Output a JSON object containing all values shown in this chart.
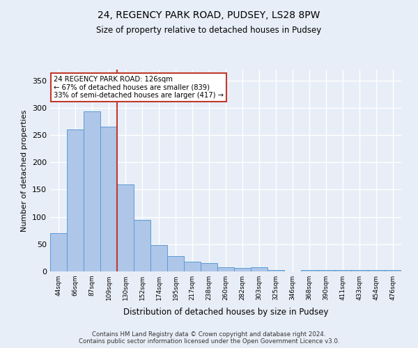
{
  "title_line1": "24, REGENCY PARK ROAD, PUDSEY, LS28 8PW",
  "title_line2": "Size of property relative to detached houses in Pudsey",
  "xlabel": "Distribution of detached houses by size in Pudsey",
  "ylabel": "Number of detached properties",
  "categories": [
    "44sqm",
    "66sqm",
    "87sqm",
    "109sqm",
    "130sqm",
    "152sqm",
    "174sqm",
    "195sqm",
    "217sqm",
    "238sqm",
    "260sqm",
    "282sqm",
    "303sqm",
    "325sqm",
    "346sqm",
    "368sqm",
    "390sqm",
    "411sqm",
    "433sqm",
    "454sqm",
    "476sqm"
  ],
  "values": [
    70,
    260,
    293,
    265,
    160,
    95,
    48,
    28,
    18,
    15,
    8,
    6,
    8,
    3,
    0,
    3,
    3,
    3,
    3,
    3,
    3
  ],
  "bar_color": "#aec6e8",
  "bar_edge_color": "#5b9bd5",
  "annotation_line1": "24 REGENCY PARK ROAD: 126sqm",
  "annotation_line2": "← 67% of detached houses are smaller (839)",
  "annotation_line3": "33% of semi-detached houses are larger (417) →",
  "vline_color": "#c0392b",
  "vline_x": 3.5,
  "ylim": [
    0,
    370
  ],
  "yticks": [
    0,
    50,
    100,
    150,
    200,
    250,
    300,
    350
  ],
  "footer_line1": "Contains HM Land Registry data © Crown copyright and database right 2024.",
  "footer_line2": "Contains public sector information licensed under the Open Government Licence v3.0.",
  "bg_color": "#e8eef7",
  "grid_color": "#ffffff",
  "annotation_box_color": "#ffffff",
  "annotation_box_edge": "#c0392b"
}
